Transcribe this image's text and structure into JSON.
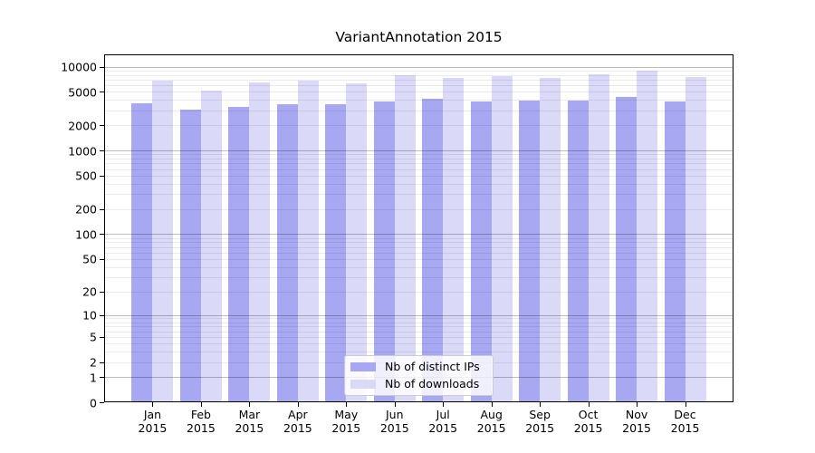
{
  "chart_data": {
    "type": "bar",
    "title": "VariantAnnotation 2015",
    "categories": [
      "Jan",
      "Feb",
      "Mar",
      "Apr",
      "May",
      "Jun",
      "Jul",
      "Aug",
      "Sep",
      "Oct",
      "Nov",
      "Dec"
    ],
    "x_year_line": "2015",
    "series": [
      {
        "name": "Nb of distinct IPs",
        "color": "#a7a7f2",
        "values": [
          3700,
          3050,
          3350,
          3610,
          3610,
          3820,
          4150,
          3820,
          3915,
          3900,
          4350,
          3820
        ]
      },
      {
        "name": "Nb of downloads",
        "color": "#dadaf8",
        "values": [
          6850,
          5150,
          6400,
          6890,
          6290,
          7900,
          7420,
          7740,
          7290,
          8100,
          9050,
          7470
        ]
      }
    ],
    "xlabel": "",
    "ylabel": "",
    "y_ticks": [
      0,
      1,
      2,
      5,
      10,
      20,
      50,
      100,
      200,
      500,
      1000,
      2000,
      5000,
      10000
    ],
    "y_scale": "log1p",
    "ylim": [
      0,
      14000
    ],
    "grid": true,
    "legend_position": "lower center",
    "colors": {
      "background": "#ffffff",
      "axis": "#000000",
      "grid_major": "#c3c3c3",
      "grid_minor": "#ebebeb",
      "legend_border": "#cccccc"
    }
  }
}
